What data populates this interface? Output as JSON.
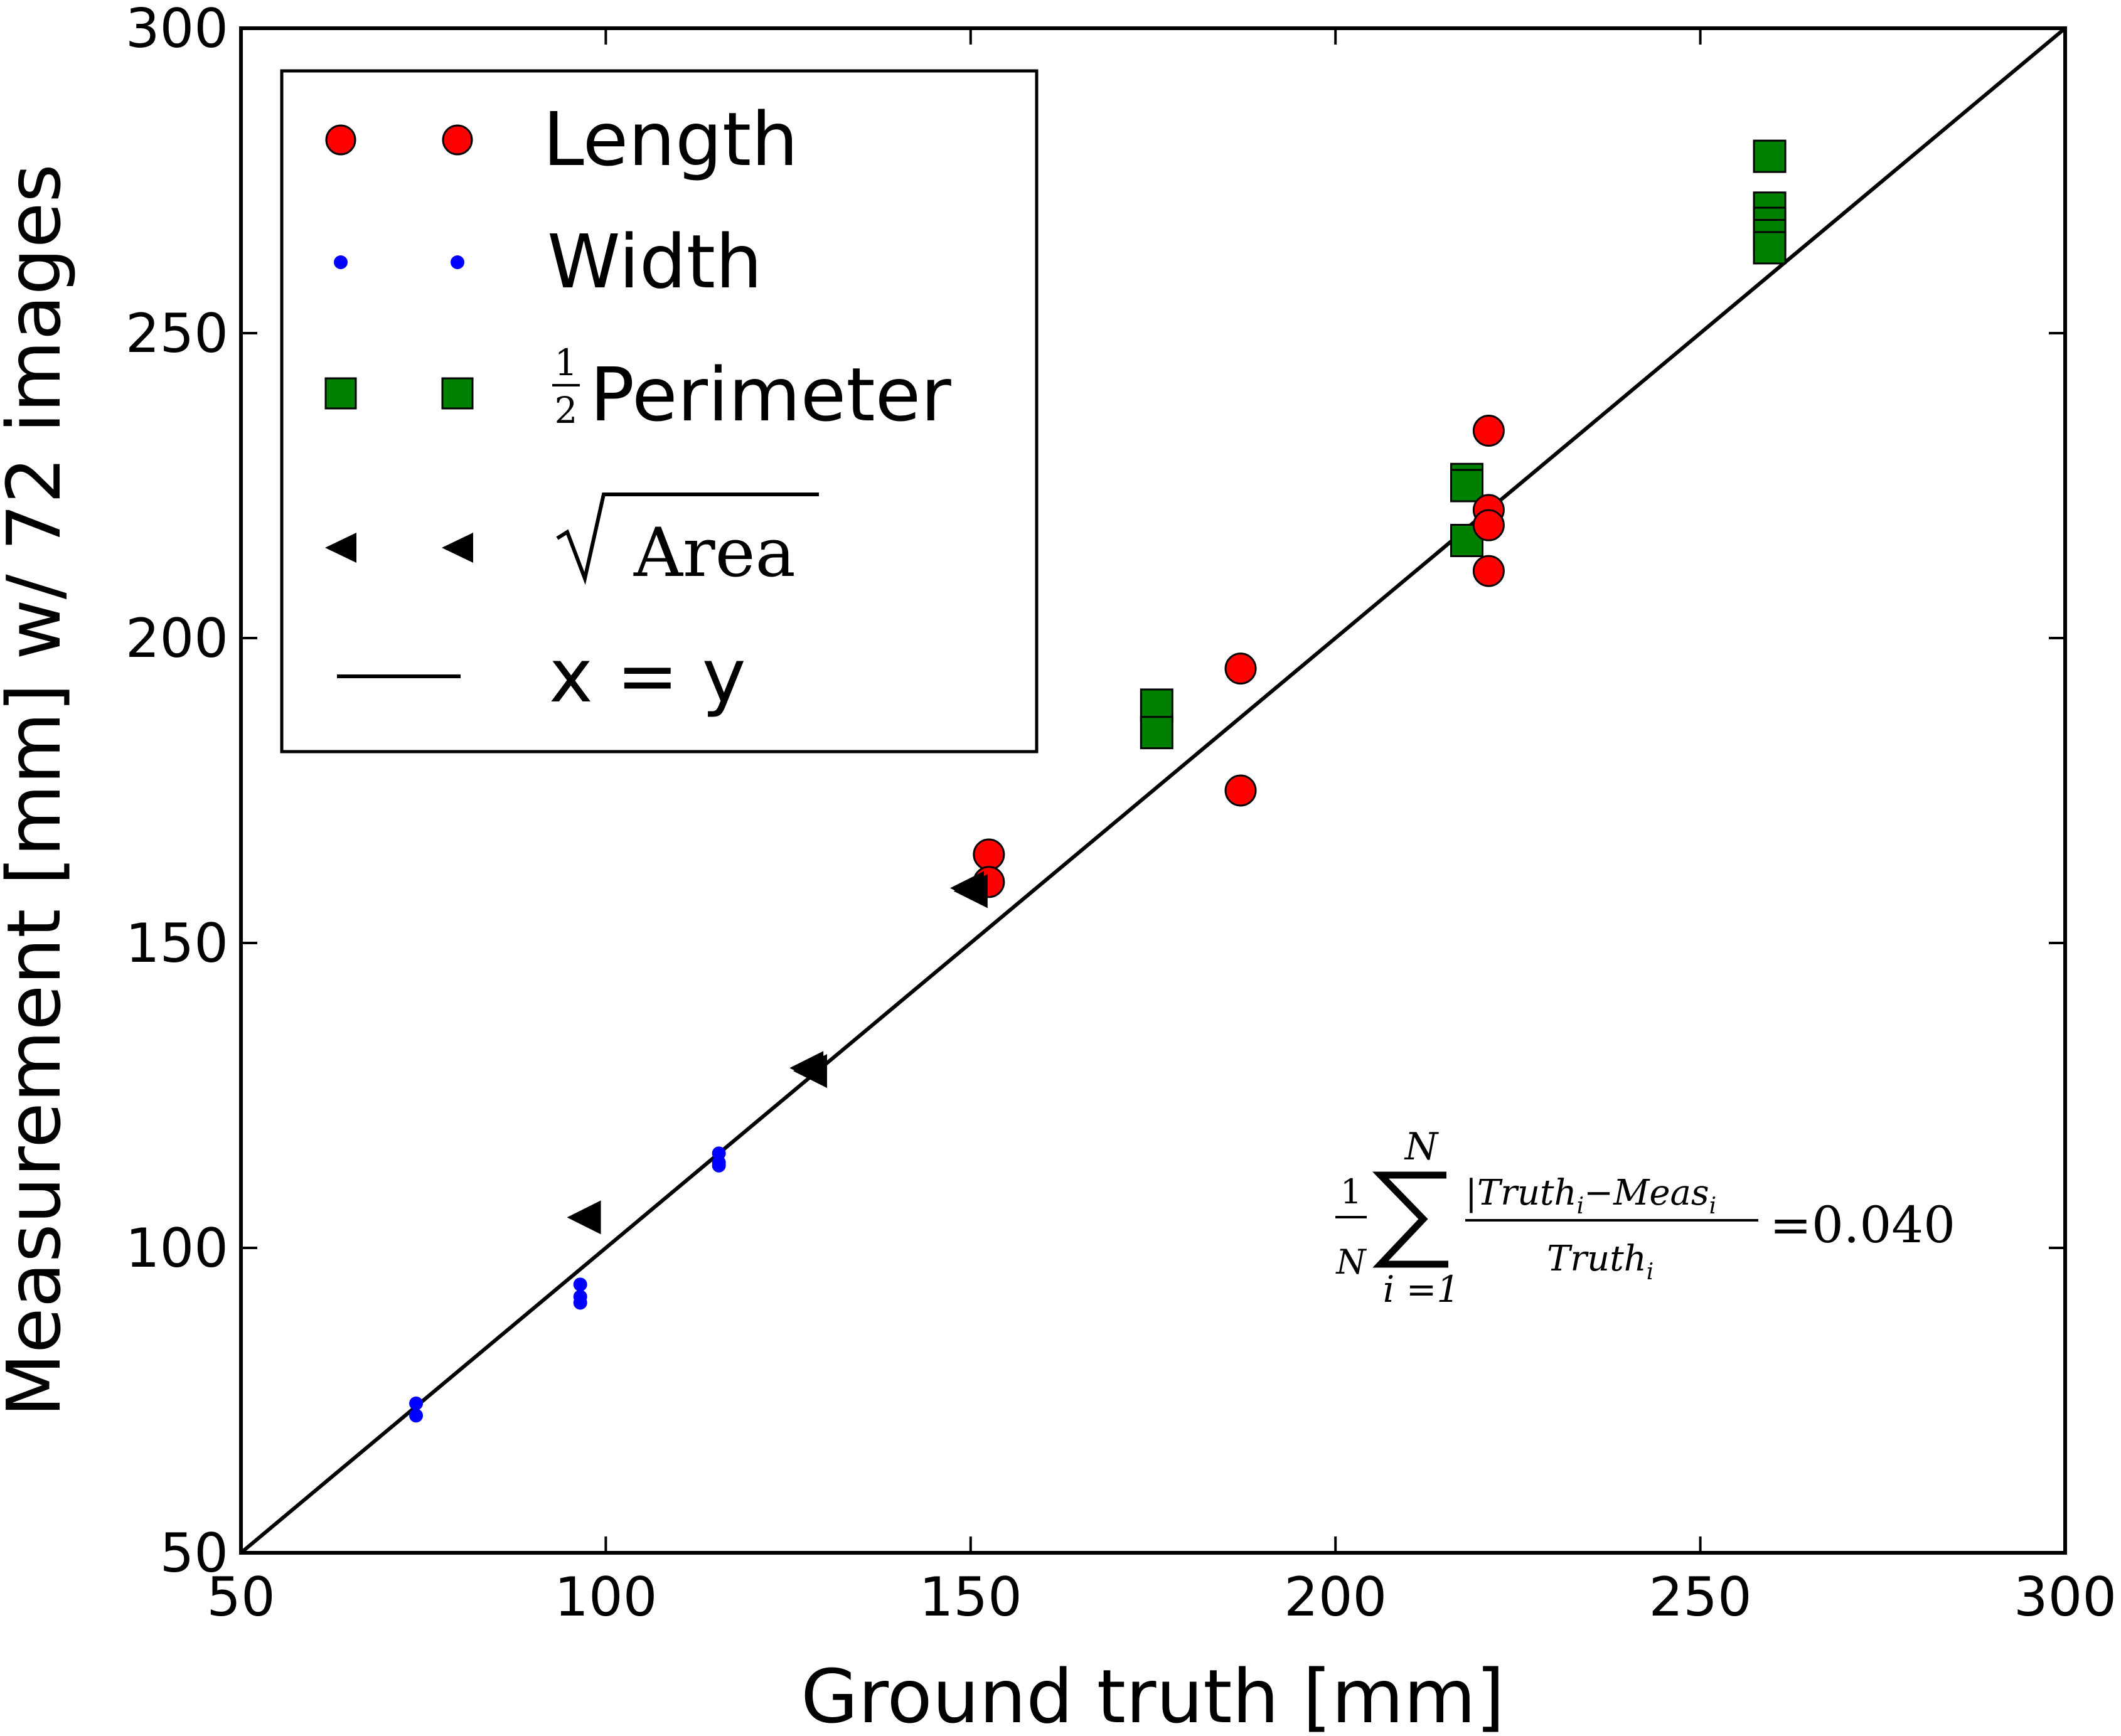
{
  "chart_data": {
    "type": "scatter",
    "title": "",
    "xlabel": "Ground truth [mm]",
    "ylabel": "Measurement [mm] w/ 72 images",
    "xlim": [
      50,
      300
    ],
    "ylim": [
      50,
      300
    ],
    "xticks": [
      50,
      100,
      150,
      200,
      250,
      300
    ],
    "yticks": [
      50,
      100,
      150,
      200,
      250,
      300
    ],
    "grid": false,
    "legend_position": "top-left",
    "series": [
      {
        "name": "Length",
        "marker": "circle",
        "color": "#ff0000",
        "points": [
          [
            152.5,
            164.5
          ],
          [
            152.5,
            160.0
          ],
          [
            187.0,
            195.0
          ],
          [
            187.0,
            175.0
          ],
          [
            221.0,
            234.0
          ],
          [
            221.0,
            221.0
          ],
          [
            221.0,
            218.5
          ],
          [
            221.0,
            211.0
          ]
        ]
      },
      {
        "name": "Width",
        "marker": "dot",
        "color": "#0000ff",
        "points": [
          [
            74.0,
            74.5
          ],
          [
            74.0,
            72.5
          ],
          [
            96.5,
            94.0
          ],
          [
            96.5,
            92.0
          ],
          [
            96.5,
            91.0
          ],
          [
            115.5,
            115.5
          ],
          [
            115.5,
            114.0
          ],
          [
            115.5,
            113.5
          ]
        ]
      },
      {
        "name_prefix": "1/2",
        "name": "Perimeter",
        "marker": "square",
        "color": "#008000",
        "points": [
          [
            175.5,
            189.0
          ],
          [
            175.5,
            184.5
          ],
          [
            218.0,
            226.0
          ],
          [
            218.0,
            225.0
          ],
          [
            218.0,
            216.0
          ],
          [
            259.5,
            279.0
          ],
          [
            259.5,
            270.5
          ],
          [
            259.5,
            268.0
          ],
          [
            259.5,
            266.0
          ],
          [
            259.5,
            264.0
          ]
        ]
      },
      {
        "name_prefix": "√",
        "name": "Area",
        "marker": "triangle-left",
        "color": "#000000",
        "points": [
          [
            97.0,
            105.0
          ],
          [
            127.5,
            129.5
          ],
          [
            128.0,
            129.0
          ],
          [
            149.5,
            159.0
          ],
          [
            150.0,
            158.5
          ]
        ]
      },
      {
        "name": "x = y",
        "marker": "line",
        "color": "#000000",
        "points": [
          [
            50,
            50
          ],
          [
            300,
            300
          ]
        ]
      }
    ],
    "annotation": {
      "frac_num": "1",
      "frac_den": "N",
      "sum_upper": "N",
      "sum_lower": "i =1",
      "numerator": "|Truth",
      "numerator_sub": "i",
      "numerator_mid": "−Meas",
      "numerator_sub2": "i",
      "denominator": "Truth",
      "denominator_sub": "i",
      "result": "=0.040"
    }
  }
}
